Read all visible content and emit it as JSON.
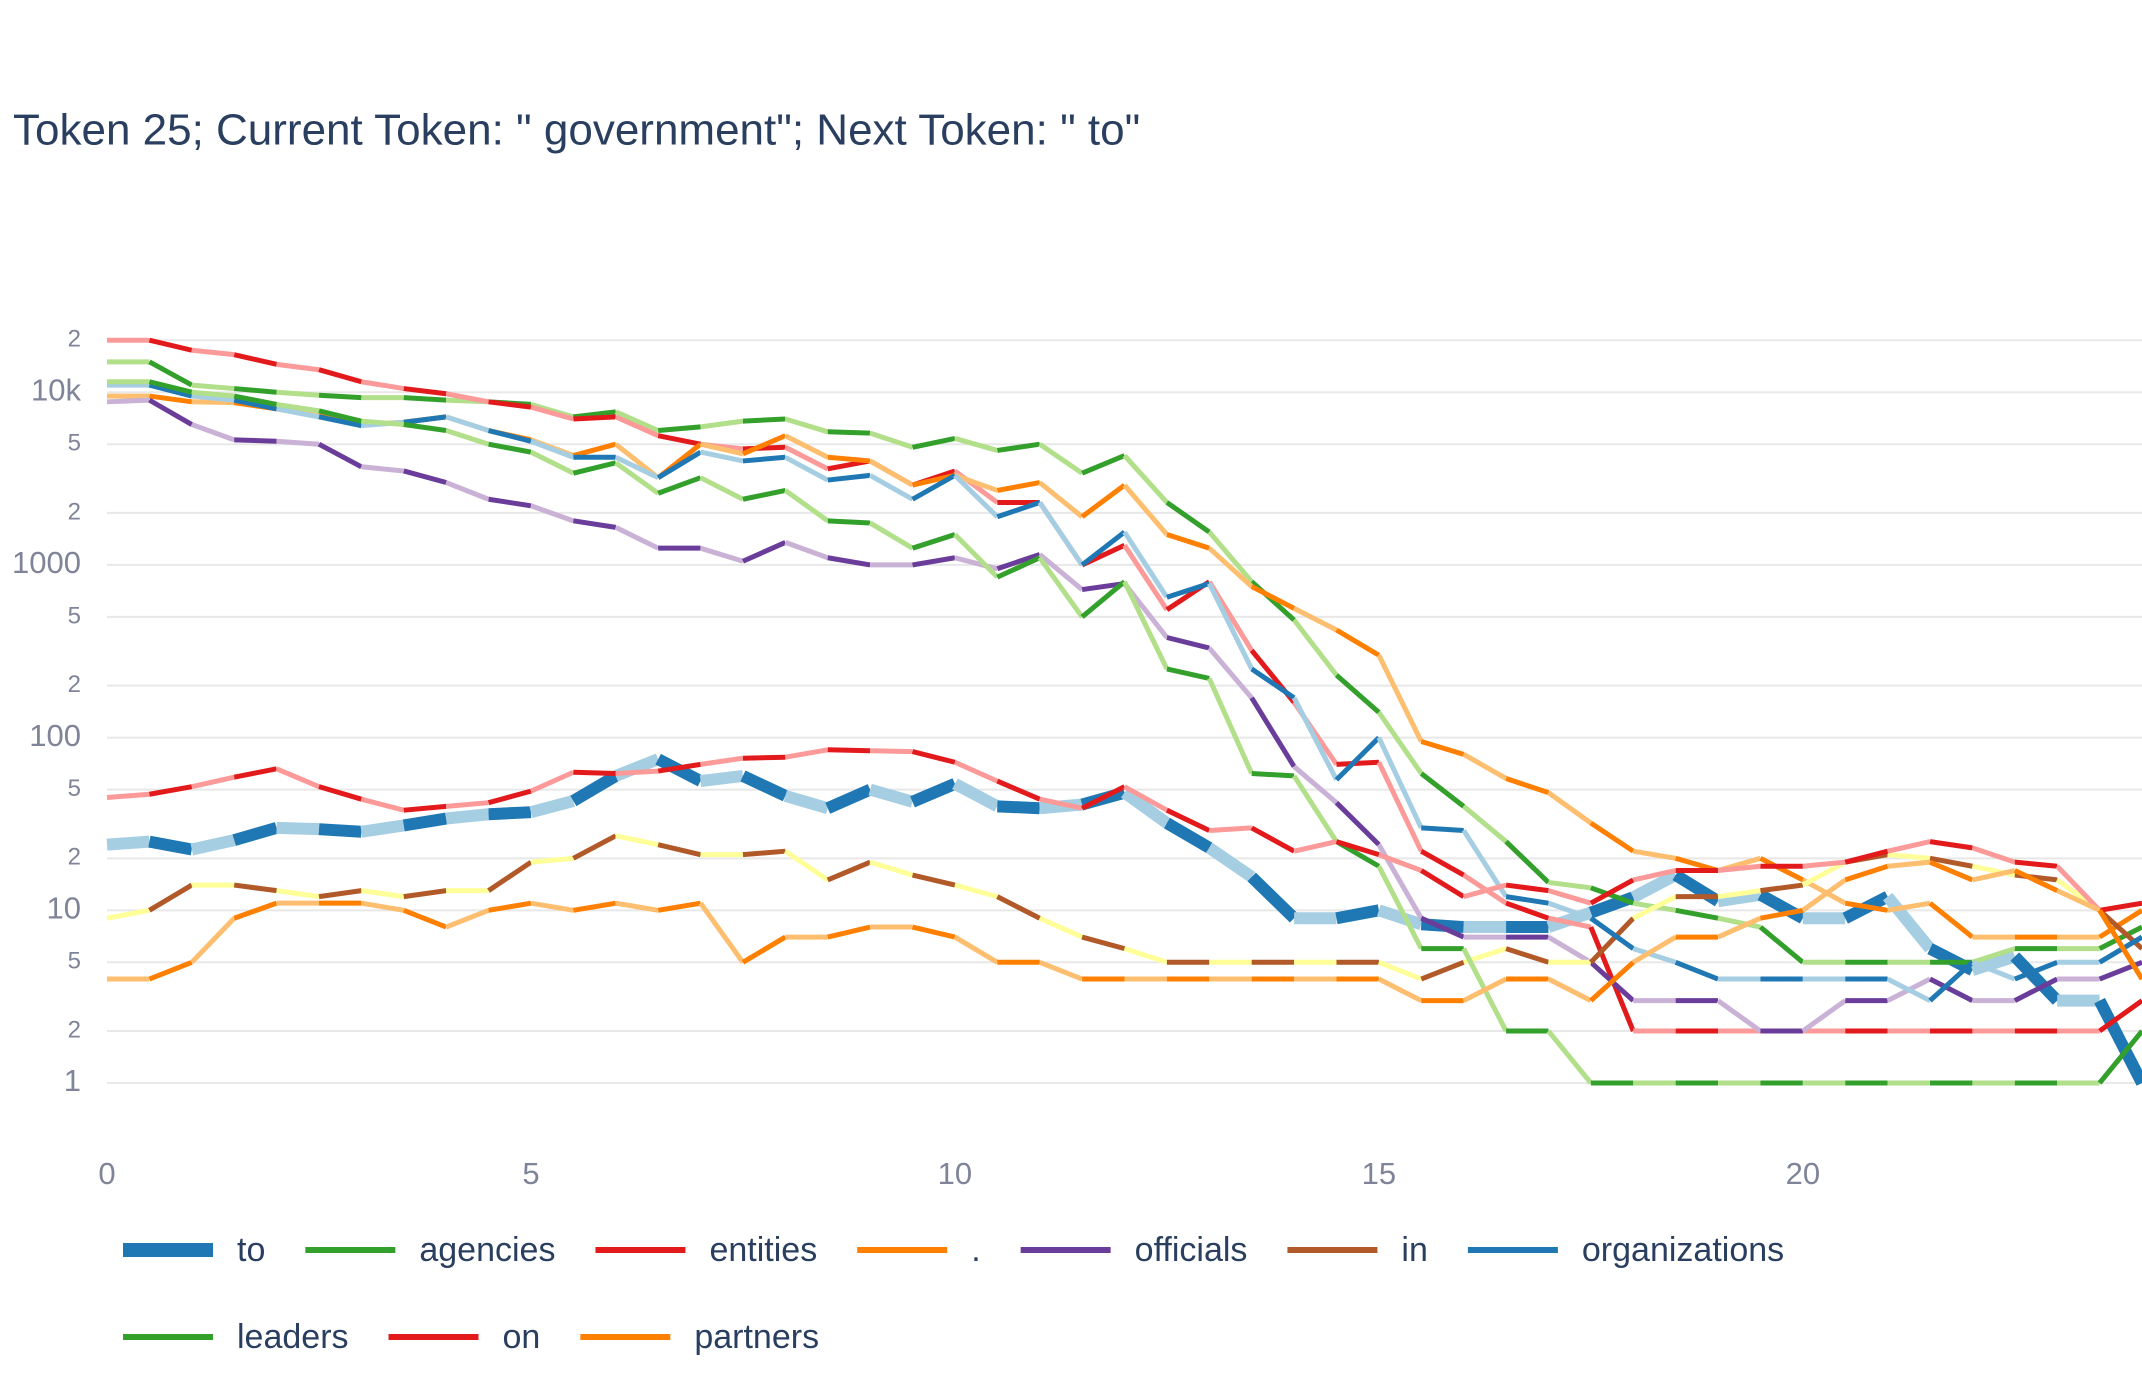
{
  "chart_data": {
    "type": "line",
    "title": "Token 25; Current Token: \" government\"; Next Token: \" to\"",
    "log_y": true,
    "grid": true,
    "xlim": [
      0,
      24
    ],
    "xticks": [
      0,
      5,
      10,
      15,
      20
    ],
    "ylim": [
      0.5,
      28000
    ],
    "yticks": [
      {
        "value": 20000,
        "label": "2"
      },
      {
        "value": 10000,
        "label": "10k"
      },
      {
        "value": 5000,
        "label": "5"
      },
      {
        "value": 2000,
        "label": "2"
      },
      1000,
      {
        "value": 500,
        "label": "5"
      },
      {
        "value": 200,
        "label": "2"
      },
      100,
      {
        "value": 50,
        "label": "5"
      },
      {
        "value": 20,
        "label": "2"
      },
      10,
      5,
      2,
      1
    ],
    "x": [
      0,
      0.5,
      1,
      1.5,
      2,
      2.5,
      3,
      3.5,
      4,
      4.5,
      5,
      5.5,
      6,
      6.5,
      7,
      7.5,
      8,
      8.5,
      9,
      9.5,
      10,
      10.5,
      11,
      11.5,
      12,
      12.5,
      13,
      13.5,
      14,
      14.5,
      15,
      15.5,
      16,
      16.5,
      17,
      17.5,
      18,
      18.5,
      19,
      19.5,
      20,
      20.5,
      21,
      21.5,
      22,
      22.5,
      23,
      23.5,
      24
    ],
    "series": [
      {
        "name": "to",
        "highlight": true,
        "colors": [
          "#a6cee3",
          "#1f78b4"
        ],
        "values": [
          24,
          25,
          22.5,
          25.5,
          30,
          29.5,
          28.5,
          31,
          34,
          36,
          37,
          43,
          60,
          75,
          56,
          60,
          46,
          39,
          50,
          42.5,
          54,
          40,
          39,
          41,
          48,
          32,
          23,
          15.6,
          9,
          9,
          10,
          8.3,
          8,
          8,
          8,
          9.7,
          11.9,
          16,
          11.3,
          12.3,
          9,
          9,
          12,
          6,
          4.5,
          5.4,
          3,
          3,
          1
        ]
      },
      {
        "name": "agencies",
        "colors": [
          "#b2df8a",
          "#33a02c"
        ],
        "values": [
          15000,
          15000,
          11000,
          10500,
          10000,
          9600,
          9300,
          9300,
          9000,
          8800,
          8500,
          7200,
          7700,
          6000,
          6300,
          6800,
          7000,
          5900,
          5800,
          4800,
          5400,
          4600,
          5000,
          3400,
          4300,
          2300,
          1550,
          800,
          480,
          230,
          140,
          62,
          40,
          25,
          14.5,
          13.5,
          11,
          10,
          9,
          8,
          5,
          5,
          5,
          5,
          5,
          6,
          6,
          6,
          8
        ]
      },
      {
        "name": "entities",
        "colors": [
          "#fb9a99",
          "#e31a1c"
        ],
        "values": [
          20000,
          20000,
          17500,
          16500,
          14500,
          13500,
          11500,
          10500,
          9800,
          8800,
          8200,
          7000,
          7200,
          5600,
          5000,
          4700,
          4800,
          3600,
          4000,
          2900,
          3500,
          2300,
          2300,
          1000,
          1300,
          550,
          800,
          320,
          160,
          70,
          72,
          22,
          16,
          11,
          9,
          8,
          2,
          2,
          2,
          2,
          2,
          2,
          2,
          2,
          2,
          2,
          2,
          2,
          3
        ]
      },
      {
        "name": ".",
        "colors": [
          "#fdbf6f",
          "#ff7f00"
        ],
        "values": [
          9500,
          9500,
          8800,
          8700,
          8000,
          7300,
          6500,
          6700,
          7200,
          6000,
          5300,
          4300,
          5000,
          3200,
          5000,
          4400,
          5600,
          4200,
          4000,
          2900,
          3300,
          2700,
          3000,
          1900,
          2900,
          1500,
          1250,
          750,
          560,
          420,
          300,
          95,
          80,
          58,
          48,
          32,
          22,
          20,
          17,
          20,
          15,
          11,
          10,
          11,
          7,
          7,
          7,
          7,
          10
        ]
      },
      {
        "name": "officials",
        "colors": [
          "#cab2d6",
          "#6a3d9a"
        ],
        "values": [
          8800,
          9000,
          6500,
          5300,
          5200,
          5000,
          3700,
          3500,
          3000,
          2400,
          2200,
          1800,
          1650,
          1250,
          1250,
          1050,
          1350,
          1100,
          1000,
          1000,
          1100,
          950,
          1150,
          720,
          780,
          380,
          330,
          170,
          68,
          42,
          24,
          9,
          7,
          7,
          7,
          5,
          3,
          3,
          3,
          2,
          2,
          3,
          3,
          4,
          3,
          3,
          4,
          4,
          5
        ]
      },
      {
        "name": "in",
        "colors": [
          "#ffff99",
          "#b15928"
        ],
        "values": [
          9,
          10,
          14,
          14,
          13,
          12,
          13,
          12,
          13,
          13,
          19,
          20,
          27,
          24,
          21,
          21,
          22,
          15,
          19,
          16,
          14,
          12,
          9,
          7,
          6,
          5,
          5,
          5,
          5,
          5,
          5,
          4,
          5,
          6,
          5,
          5,
          9,
          12,
          12,
          13,
          14,
          19,
          21,
          20,
          18,
          16,
          15,
          10,
          6
        ]
      },
      {
        "name": "organizations",
        "colors": [
          "#a6cee3",
          "#1f78b4"
        ],
        "values": [
          11000,
          11000,
          9500,
          9000,
          8000,
          7200,
          6400,
          6700,
          7200,
          6000,
          5200,
          4200,
          4200,
          3200,
          4500,
          4000,
          4200,
          3100,
          3300,
          2400,
          3300,
          1900,
          2300,
          1000,
          1550,
          650,
          780,
          250,
          170,
          57,
          100,
          30,
          29,
          12,
          11,
          9,
          6,
          5,
          4,
          4,
          4,
          4,
          4,
          3,
          5,
          4,
          5,
          5,
          7
        ]
      },
      {
        "name": "leaders",
        "colors": [
          "#b2df8a",
          "#33a02c"
        ],
        "values": [
          11500,
          11500,
          10000,
          9500,
          8500,
          7800,
          6800,
          6500,
          6000,
          5000,
          4500,
          3400,
          3900,
          2600,
          3200,
          2400,
          2700,
          1800,
          1750,
          1250,
          1500,
          850,
          1100,
          500,
          800,
          250,
          220,
          62,
          60,
          25,
          18,
          6,
          6,
          2,
          2,
          1,
          1,
          1,
          1,
          1,
          1,
          1,
          1,
          1,
          1,
          1,
          1,
          1,
          2
        ]
      },
      {
        "name": "on",
        "colors": [
          "#fb9a99",
          "#e31a1c"
        ],
        "values": [
          45,
          47,
          52,
          59,
          66,
          52,
          44,
          38,
          40,
          42,
          49,
          63,
          62,
          64,
          70,
          76,
          77,
          85,
          84,
          83,
          72,
          56,
          44,
          39,
          52,
          38,
          29,
          30,
          22,
          25,
          21,
          17,
          12,
          14,
          13,
          11,
          15,
          17,
          17,
          18,
          18,
          19,
          22,
          25,
          23,
          19,
          18,
          10,
          11
        ]
      },
      {
        "name": "partners",
        "colors": [
          "#fdbf6f",
          "#ff7f00"
        ],
        "values": [
          4,
          4,
          5,
          9,
          11,
          11,
          11,
          10,
          8,
          10,
          11,
          10,
          11,
          10,
          11,
          5,
          7,
          7,
          8,
          8,
          7,
          5,
          5,
          4,
          4,
          4,
          4,
          4,
          4,
          4,
          4,
          3,
          3,
          4,
          4,
          3,
          5,
          7,
          7,
          9,
          10,
          15,
          18,
          19,
          15,
          17,
          13,
          10,
          4
        ]
      }
    ]
  }
}
